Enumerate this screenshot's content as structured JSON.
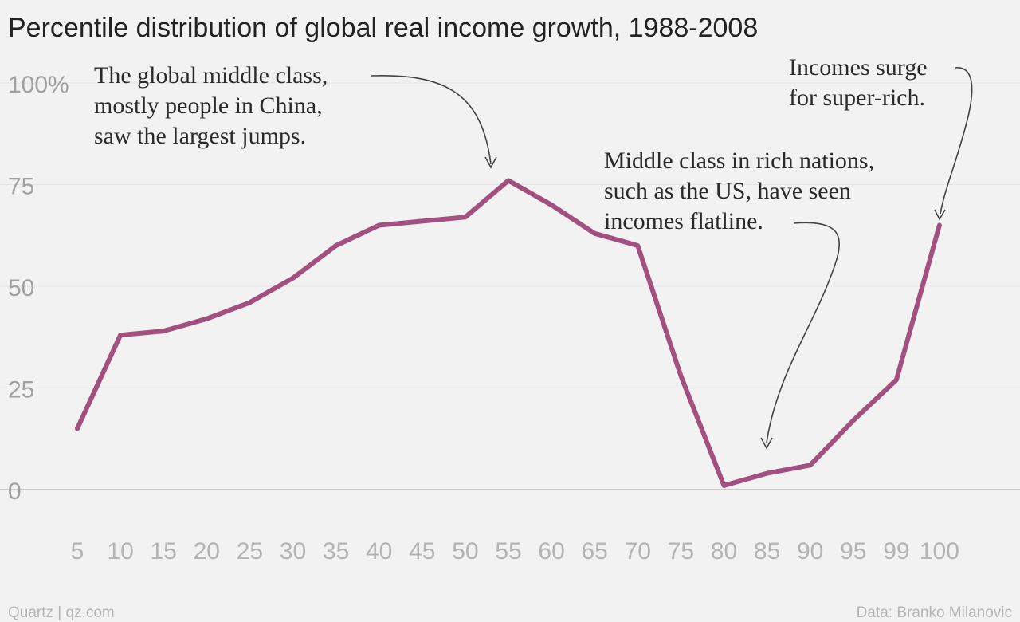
{
  "colors": {
    "series": "#a2507f",
    "background": "#f2f2f2"
  },
  "chart_data": {
    "type": "line",
    "title": "Percentile distribution of global real income growth, 1988-2008",
    "categories": [
      "5",
      "10",
      "15",
      "20",
      "25",
      "30",
      "35",
      "40",
      "45",
      "50",
      "55",
      "60",
      "65",
      "70",
      "75",
      "80",
      "85",
      "90",
      "95",
      "99",
      "100"
    ],
    "series": [
      {
        "values": [
          15,
          38,
          39,
          42,
          46,
          52,
          60,
          65,
          66,
          67,
          76,
          70,
          63,
          60,
          28,
          1,
          4,
          6,
          17,
          27,
          65
        ]
      }
    ],
    "ylim": [
      0,
      100
    ],
    "yticks": [
      {
        "value": 0,
        "label": "0"
      },
      {
        "value": 25,
        "label": "25"
      },
      {
        "value": 50,
        "label": "50"
      },
      {
        "value": 75,
        "label": "75"
      },
      {
        "value": 100,
        "label": "100%"
      }
    ],
    "grid": true,
    "annotations": [
      {
        "lines": [
          "The global middle class,",
          "mostly people in China,",
          "saw the largest jumps."
        ],
        "target": "55"
      },
      {
        "lines": [
          "Middle class in rich nations,",
          "such as the US, have seen",
          "incomes flatline."
        ],
        "target": "85"
      },
      {
        "lines": [
          "Incomes surge",
          "for super-rich."
        ],
        "target": "100"
      }
    ]
  },
  "footer": {
    "source_left": "Quartz | qz.com",
    "source_right": "Data: Branko Milanovic"
  }
}
